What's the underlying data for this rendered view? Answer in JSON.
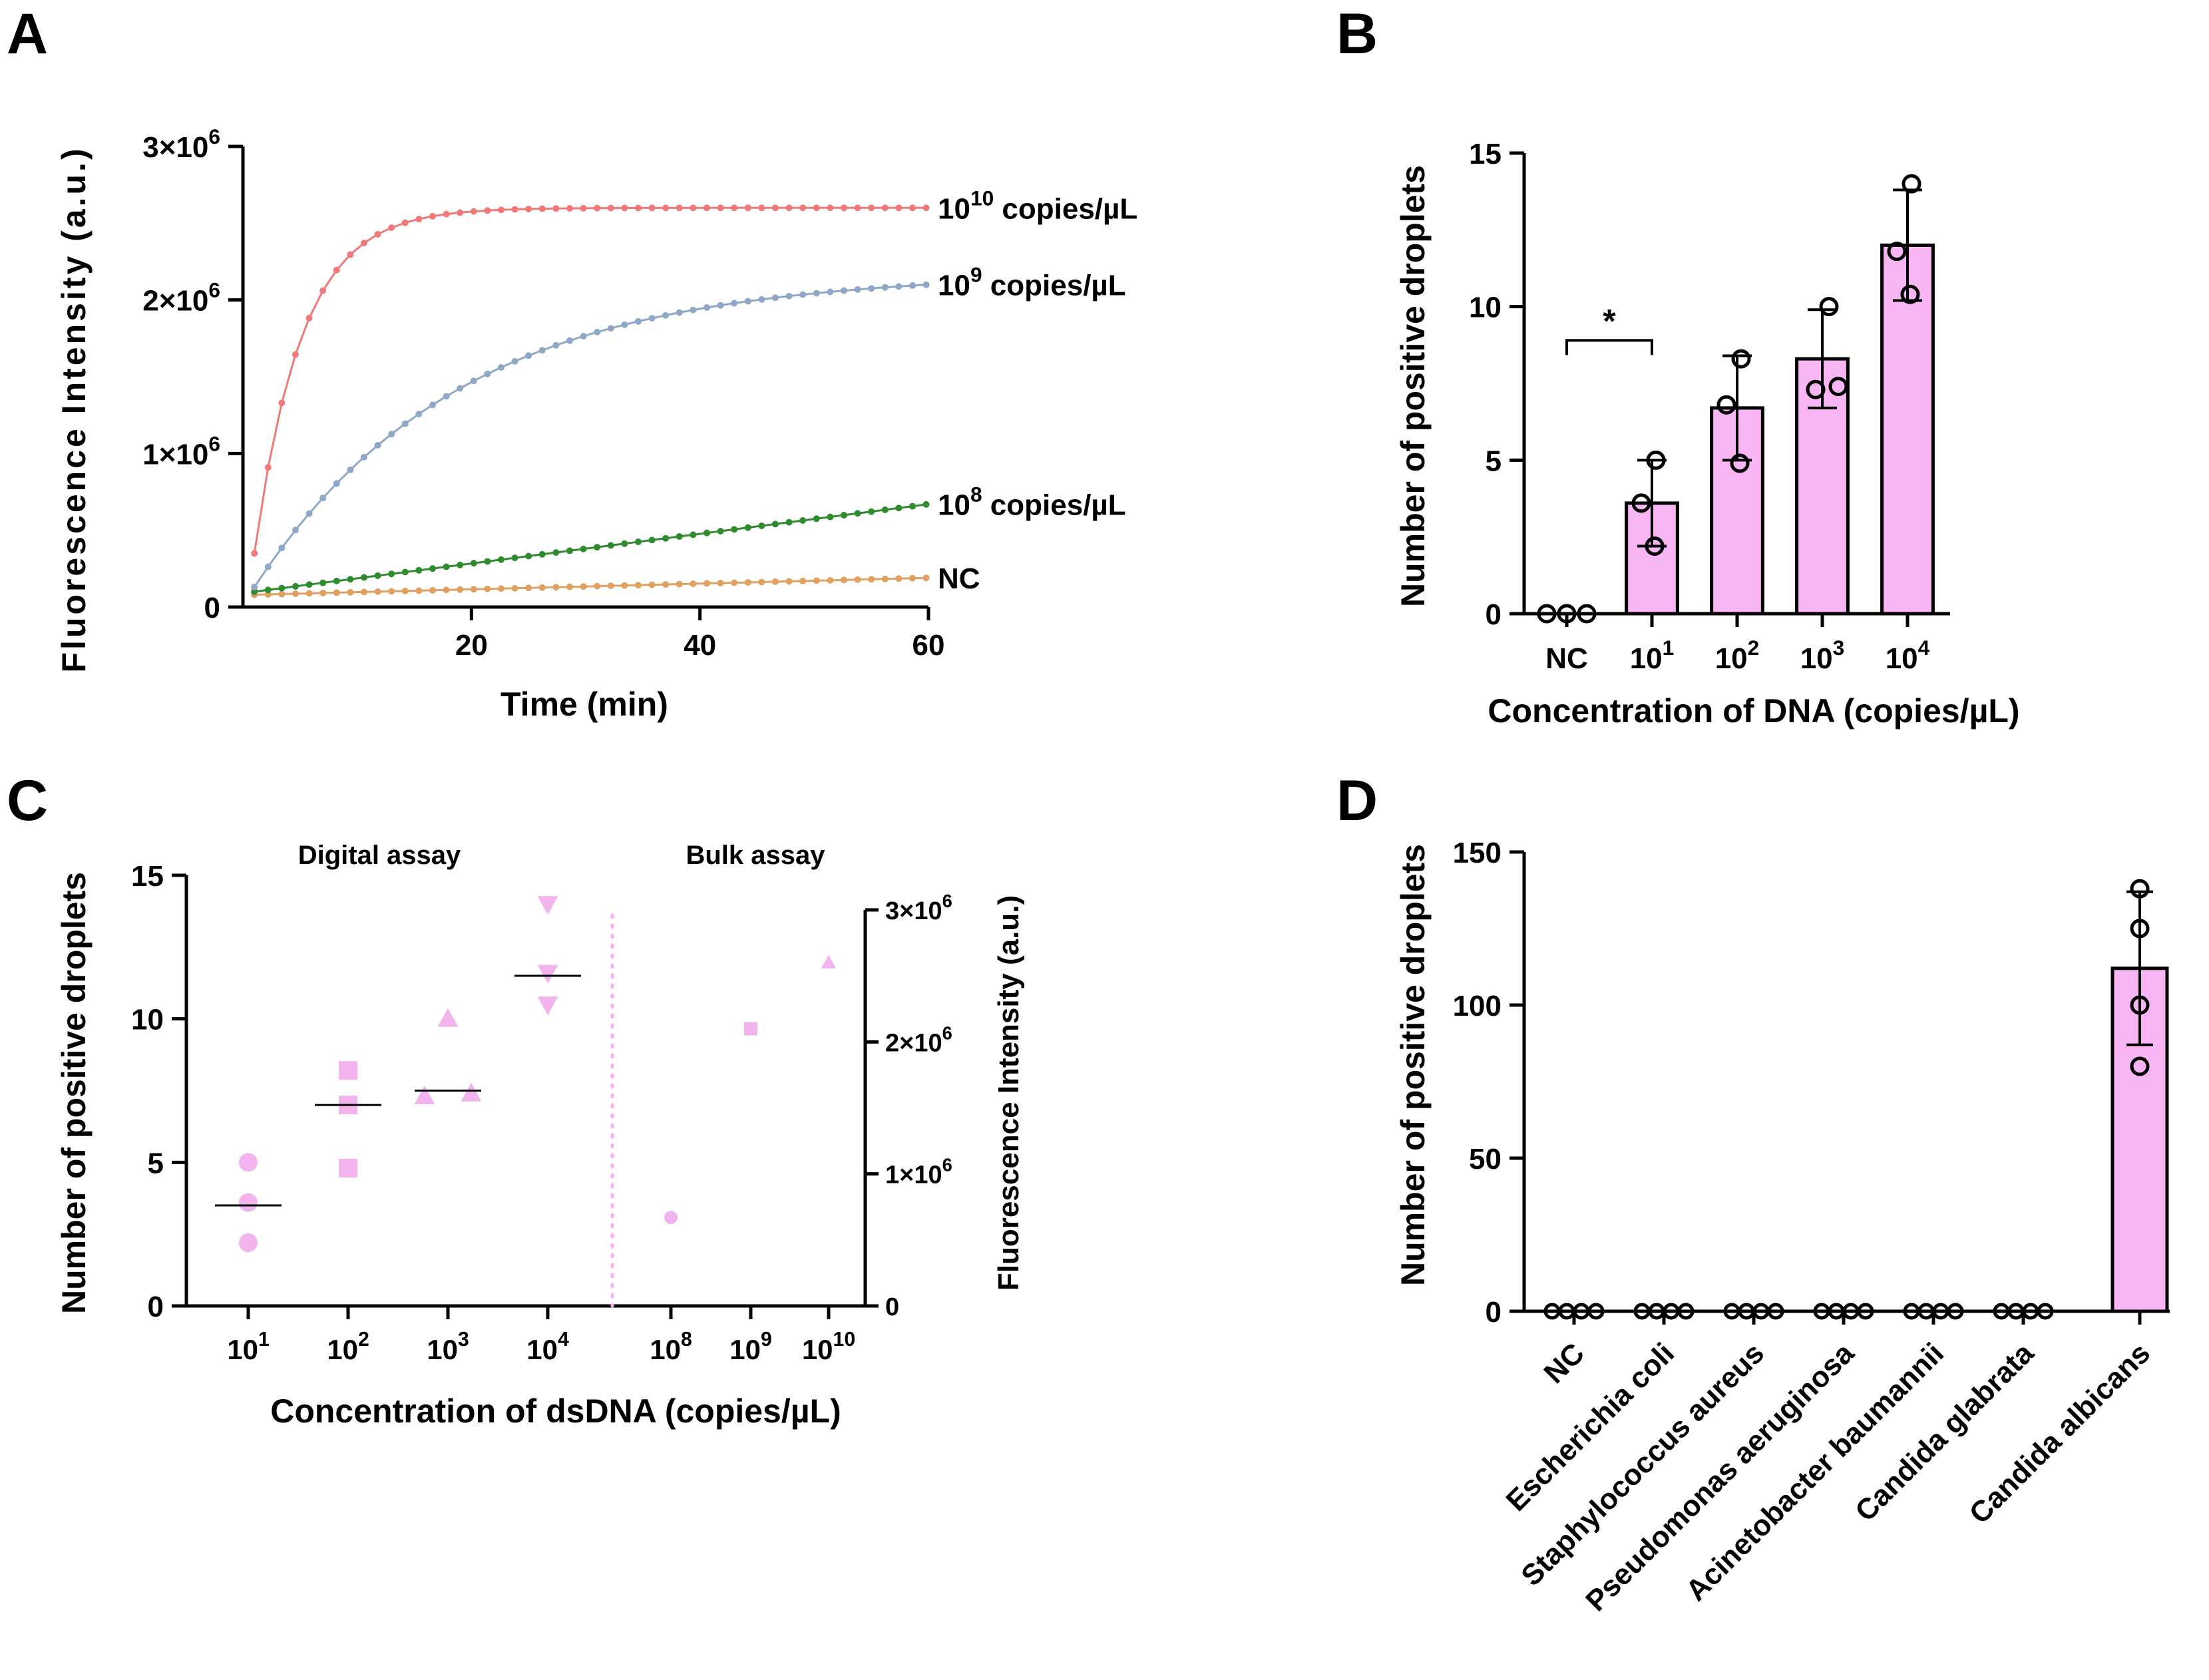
{
  "colors": {
    "nc": "#e0a060",
    "c8": "#2e8b2e",
    "c9": "#90a8c8",
    "c10": "#f07a7a",
    "bar": "#f7b6f3",
    "scatter": "#f2b3ee"
  },
  "chart_data": [
    {
      "id": "A",
      "type": "line",
      "panel_label": "A",
      "xlabel": "Time (min)",
      "ylabel": "Fluorescence Intensity (a.u.)",
      "xlim": [
        0,
        60
      ],
      "ylim": [
        0,
        3000000
      ],
      "xticks": [
        "20",
        "40",
        "60"
      ],
      "xtick_values": [
        20,
        40,
        60
      ],
      "ytick_labels": [
        {
          "base": "0",
          "exp": ""
        },
        {
          "base": "1×10",
          "exp": "6"
        },
        {
          "base": "2×10",
          "exp": "6"
        },
        {
          "base": "3×10",
          "exp": "6"
        }
      ],
      "ytick_values": [
        0,
        1000000,
        2000000,
        3000000
      ],
      "series": [
        {
          "name": "NC",
          "label_base": "NC",
          "label_exp": "",
          "label_tail": "",
          "color_key": "nc",
          "y0": 80000,
          "y60": 190000,
          "shape": "linear"
        },
        {
          "name": "10^8 copies/µL",
          "label_base": "10",
          "label_exp": "8",
          "label_tail": " copies/µL",
          "color_key": "c8",
          "y0": 100000,
          "y60": 670000,
          "shape": "linear"
        },
        {
          "name": "10^9 copies/µL",
          "label_base": "10",
          "label_exp": "9",
          "label_tail": " copies/µL",
          "color_key": "c9",
          "y0": 130000,
          "y60": 2100000,
          "shape": "slow"
        },
        {
          "name": "10^10 copies/µL",
          "label_base": "10",
          "label_exp": "10",
          "label_tail": " copies/µL",
          "color_key": "c10",
          "y0": 350000,
          "y60": 2600000,
          "shape": "fast"
        }
      ]
    },
    {
      "id": "B",
      "type": "bar",
      "panel_label": "B",
      "xlabel": "Concentration of DNA (copies/µL)",
      "ylabel": "Number of positive droplets",
      "ylim": [
        0,
        15
      ],
      "yticks": [
        "0",
        "5",
        "10",
        "15"
      ],
      "ytick_values": [
        0,
        5,
        10,
        15
      ],
      "categories": [
        {
          "base": "NC",
          "exp": ""
        },
        {
          "base": "10",
          "exp": "1"
        },
        {
          "base": "10",
          "exp": "2"
        },
        {
          "base": "10",
          "exp": "3"
        },
        {
          "base": "10",
          "exp": "4"
        }
      ],
      "values": [
        0,
        3.6,
        6.7,
        8.3,
        12
      ],
      "sd": [
        0,
        1.4,
        1.7,
        1.6,
        1.8
      ],
      "points": [
        [
          0,
          0,
          0
        ],
        [
          2.2,
          3.6,
          5.0
        ],
        [
          4.9,
          6.8,
          8.3
        ],
        [
          7.3,
          7.4,
          10.0
        ],
        [
          10.4,
          11.8,
          14.0
        ]
      ],
      "significance": {
        "from": 0,
        "to": 1,
        "label": "*"
      }
    },
    {
      "id": "C",
      "type": "scatter",
      "panel_label": "C",
      "xlabel": "Concentration of dsDNA (copies/µL)",
      "ylabel": "Number of positive droplets",
      "ylabel_right": "Fluorescence Intensity (a.u.)",
      "region_left": "Digital assay",
      "region_right": "Bulk assay",
      "ylim": [
        0,
        15
      ],
      "yticks": [
        "0",
        "5",
        "10",
        "15"
      ],
      "ytick_values": [
        0,
        5,
        10,
        15
      ],
      "ylim_right": [
        0,
        3000000
      ],
      "yticks_right": [
        {
          "base": "0",
          "exp": ""
        },
        {
          "base": "1×10",
          "exp": "6"
        },
        {
          "base": "2×10",
          "exp": "6"
        },
        {
          "base": "3×10",
          "exp": "6"
        }
      ],
      "ytick_values_right": [
        0,
        1000000,
        2000000,
        3000000
      ],
      "categories": [
        {
          "base": "10",
          "exp": "1"
        },
        {
          "base": "10",
          "exp": "2"
        },
        {
          "base": "10",
          "exp": "3"
        },
        {
          "base": "10",
          "exp": "4"
        },
        {
          "base": "10",
          "exp": "8"
        },
        {
          "base": "10",
          "exp": "9"
        },
        {
          "base": "10",
          "exp": "10"
        }
      ],
      "digital": [
        {
          "shape": "circle",
          "values": [
            2.2,
            3.6,
            5.0
          ],
          "median": 3.5
        },
        {
          "shape": "square",
          "values": [
            4.8,
            7.0,
            8.2
          ],
          "median": 7.0
        },
        {
          "shape": "triangle",
          "values": [
            7.3,
            7.4,
            10.0
          ],
          "median": 7.5
        },
        {
          "shape": "triangle-down",
          "values": [
            10.5,
            11.6,
            14.0
          ],
          "median": 11.5
        }
      ],
      "bulk": [
        {
          "shape": "circle",
          "value": 670000
        },
        {
          "shape": "square",
          "value": 2100000
        },
        {
          "shape": "triangle",
          "value": 2600000
        }
      ]
    },
    {
      "id": "D",
      "type": "bar",
      "panel_label": "D",
      "ylabel": "Number of positive droplets",
      "ylim": [
        0,
        150
      ],
      "yticks": [
        "0",
        "50",
        "100",
        "150"
      ],
      "ytick_values": [
        0,
        50,
        100,
        150
      ],
      "categories": [
        "NC",
        "Escherichia coli",
        "Staphylococcus aureus",
        "Pseudomonas aeruginosa",
        "Acinetobacter baumannii",
        "Candida glabrata",
        "Candida albicans"
      ],
      "values": [
        0,
        0,
        0,
        0,
        0,
        0,
        112
      ],
      "sd": [
        0,
        0,
        0,
        0,
        0,
        0,
        25
      ],
      "points": [
        [
          0,
          0,
          0,
          0
        ],
        [
          0,
          0,
          0,
          0
        ],
        [
          0,
          0,
          0,
          0
        ],
        [
          0,
          0,
          0,
          0
        ],
        [
          0,
          0,
          0,
          0
        ],
        [
          0,
          0,
          0,
          0
        ],
        [
          80,
          100,
          125,
          138
        ]
      ]
    }
  ]
}
